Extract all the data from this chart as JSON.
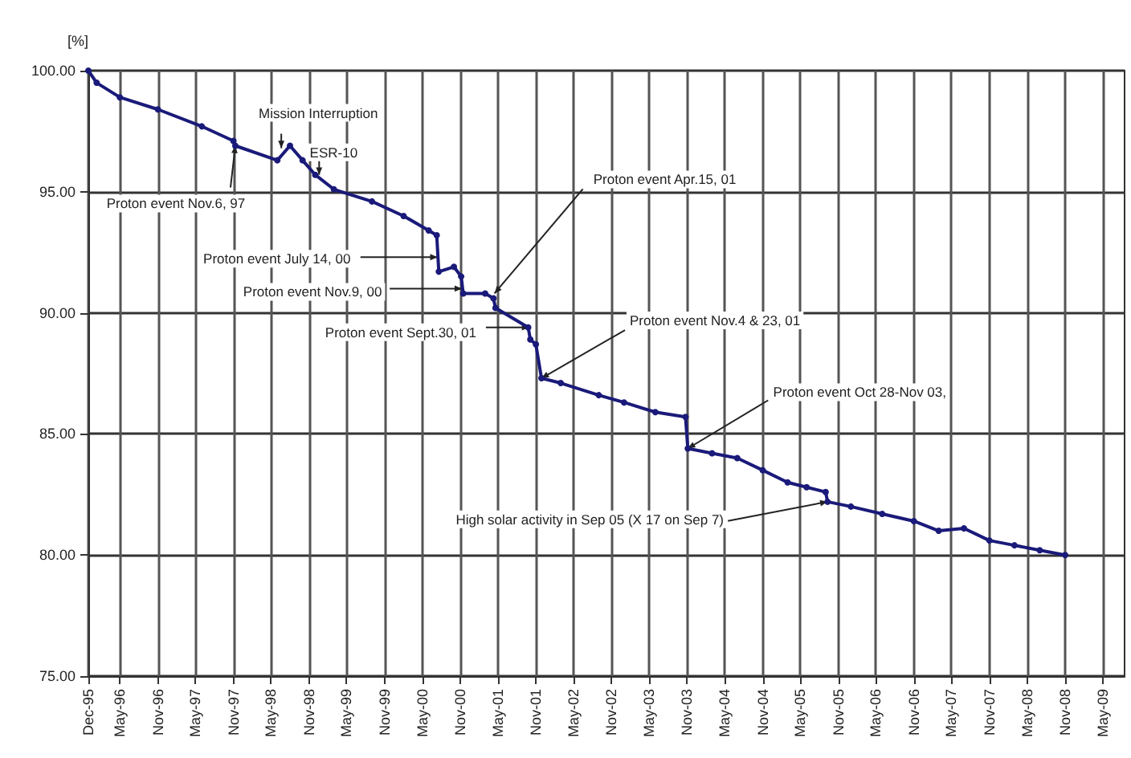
{
  "chart_data": {
    "type": "line",
    "ylabel": "[%]",
    "x": [
      "1995-12-01",
      "1996-01-10",
      "1996-05-01",
      "1996-11-01",
      "1997-06-01",
      "1997-11-01",
      "1997-11-10",
      "1998-06-01",
      "1998-08-01",
      "1998-10-01",
      "1998-12-01",
      "1999-03-01",
      "1999-09-01",
      "2000-02-01",
      "2000-06-01",
      "2000-07-10",
      "2000-07-20",
      "2000-10-01",
      "2000-11-05",
      "2000-11-15",
      "2001-03-01",
      "2001-04-10",
      "2001-04-20",
      "2001-09-25",
      "2001-10-05",
      "2001-11-01",
      "2001-11-28",
      "2002-03-01",
      "2002-09-01",
      "2003-01-01",
      "2003-06-01",
      "2003-10-25",
      "2003-11-05",
      "2004-03-01",
      "2004-07-01",
      "2004-11-01",
      "2005-03-01",
      "2005-06-01",
      "2005-09-01",
      "2005-09-10",
      "2006-01-01",
      "2006-06-01",
      "2006-11-01",
      "2007-03-01",
      "2007-07-01",
      "2007-11-01",
      "2008-03-01",
      "2008-07-01",
      "2008-11-01"
    ],
    "series": [
      {
        "color": "#1a1a7a",
        "values": [
          100.0,
          99.5,
          98.9,
          98.4,
          97.7,
          97.1,
          96.9,
          96.3,
          96.9,
          96.3,
          95.7,
          95.1,
          94.6,
          94.0,
          93.4,
          93.2,
          91.7,
          91.9,
          91.5,
          90.8,
          90.8,
          90.6,
          90.2,
          89.4,
          88.9,
          88.7,
          87.3,
          87.1,
          86.6,
          86.3,
          85.9,
          85.7,
          84.4,
          84.2,
          84.0,
          83.5,
          83.0,
          82.8,
          82.6,
          82.2,
          82.0,
          81.7,
          81.4,
          81.0,
          81.1,
          80.6,
          80.4,
          80.2,
          80.0
        ]
      }
    ],
    "xlim": [
      "1995-12-01",
      "2009-08-15"
    ],
    "xticks": [
      {
        "value": "1995-12",
        "label": "Dec-95"
      },
      {
        "value": "1996-05",
        "label": "May-96"
      },
      {
        "value": "1996-11",
        "label": "Nov-96"
      },
      {
        "value": "1997-05",
        "label": "May-97"
      },
      {
        "value": "1997-11",
        "label": "Nov-97"
      },
      {
        "value": "1998-05",
        "label": "May-98"
      },
      {
        "value": "1998-11",
        "label": "Nov-98"
      },
      {
        "value": "1999-05",
        "label": "May-99"
      },
      {
        "value": "1999-11",
        "label": "Nov-99"
      },
      {
        "value": "2000-05",
        "label": "May-00"
      },
      {
        "value": "2000-11",
        "label": "Nov-00"
      },
      {
        "value": "2001-05",
        "label": "May-01"
      },
      {
        "value": "2001-11",
        "label": "Nov-01"
      },
      {
        "value": "2002-05",
        "label": "May-02"
      },
      {
        "value": "2002-11",
        "label": "Nov-02"
      },
      {
        "value": "2003-05",
        "label": "May-03"
      },
      {
        "value": "2003-11",
        "label": "Nov-03"
      },
      {
        "value": "2004-05",
        "label": "May-04"
      },
      {
        "value": "2004-11",
        "label": "Nov-04"
      },
      {
        "value": "2005-05",
        "label": "May-05"
      },
      {
        "value": "2005-11",
        "label": "Nov-05"
      },
      {
        "value": "2006-05",
        "label": "May-06"
      },
      {
        "value": "2006-11",
        "label": "Nov-06"
      },
      {
        "value": "2007-05",
        "label": "May-07"
      },
      {
        "value": "2007-11",
        "label": "Nov-07"
      },
      {
        "value": "2008-05",
        "label": "May-08"
      },
      {
        "value": "2008-11",
        "label": "Nov-08"
      },
      {
        "value": "2009-05",
        "label": "May-09"
      }
    ],
    "ylim": [
      75,
      100
    ],
    "yticks": [
      {
        "value": 75,
        "label": "75.00"
      },
      {
        "value": 80,
        "label": "80.00"
      },
      {
        "value": 85,
        "label": "85.00"
      },
      {
        "value": 90,
        "label": "90.00"
      },
      {
        "value": 95,
        "label": "95.00"
      },
      {
        "value": 100,
        "label": "100.00"
      }
    ],
    "grid": true,
    "marker": "circle",
    "line_style": "solid",
    "annotations": [
      {
        "text": "Proton event Nov.6, 97",
        "x": "1997-11-10",
        "y": 96.9
      },
      {
        "text": "Mission Interruption",
        "x": "1998-06-20",
        "y": 96.8
      },
      {
        "text": "ESR-10",
        "x": "1998-12-20",
        "y": 95.7
      },
      {
        "text": "Proton event July 14, 00",
        "x": "2000-07-14",
        "y": 92.3
      },
      {
        "text": "Proton event Nov.9, 00",
        "x": "2000-11-09",
        "y": 91.0
      },
      {
        "text": "Proton event Sept.30, 01",
        "x": "2001-09-30",
        "y": 89.4
      },
      {
        "text": "Proton event Apr.15, 01",
        "x": "2001-04-15",
        "y": 90.8
      },
      {
        "text": "Proton event Nov.4 & 23, 01",
        "x": "2001-11-28",
        "y": 87.3
      },
      {
        "text": "Proton event Oct 28-Nov 03,",
        "x": "2003-11-05",
        "y": 84.4
      },
      {
        "text": "High solar activity in Sep 05 (X 17 on Sep 7)",
        "x": "2005-09-10",
        "y": 82.2
      }
    ]
  }
}
